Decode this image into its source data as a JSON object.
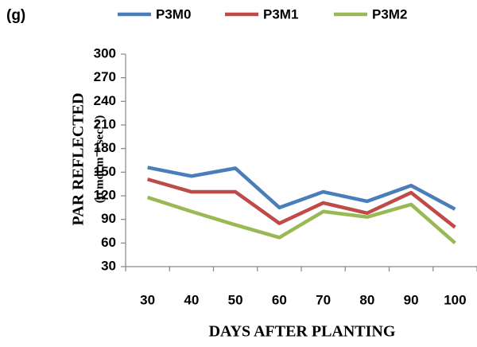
{
  "chart_data": {
    "type": "line",
    "title": "(g)",
    "y_label": "PAR REFLECTED",
    "y_label_unit": "(µ mol m⁻² sec⁻¹)",
    "x_label": "DAYS AFTER PLANTING",
    "categories": [
      "30",
      "40",
      "50",
      "60",
      "70",
      "80",
      "90",
      "100"
    ],
    "series": [
      {
        "name": "P3M0",
        "color": "#4a7ebb",
        "values": [
          156,
          145,
          155,
          105,
          125,
          113,
          133,
          103
        ]
      },
      {
        "name": "P3M1",
        "color": "#be4b48",
        "values": [
          141,
          125,
          125,
          85,
          111,
          98,
          124,
          80
        ]
      },
      {
        "name": "P3M2",
        "color": "#98b954",
        "values": [
          118,
          100,
          83,
          67,
          100,
          93,
          109,
          60
        ]
      }
    ],
    "ylim": [
      30,
      300
    ],
    "yticks": [
      30,
      60,
      90,
      120,
      150,
      180,
      210,
      240,
      270,
      300
    ],
    "grid": false
  }
}
